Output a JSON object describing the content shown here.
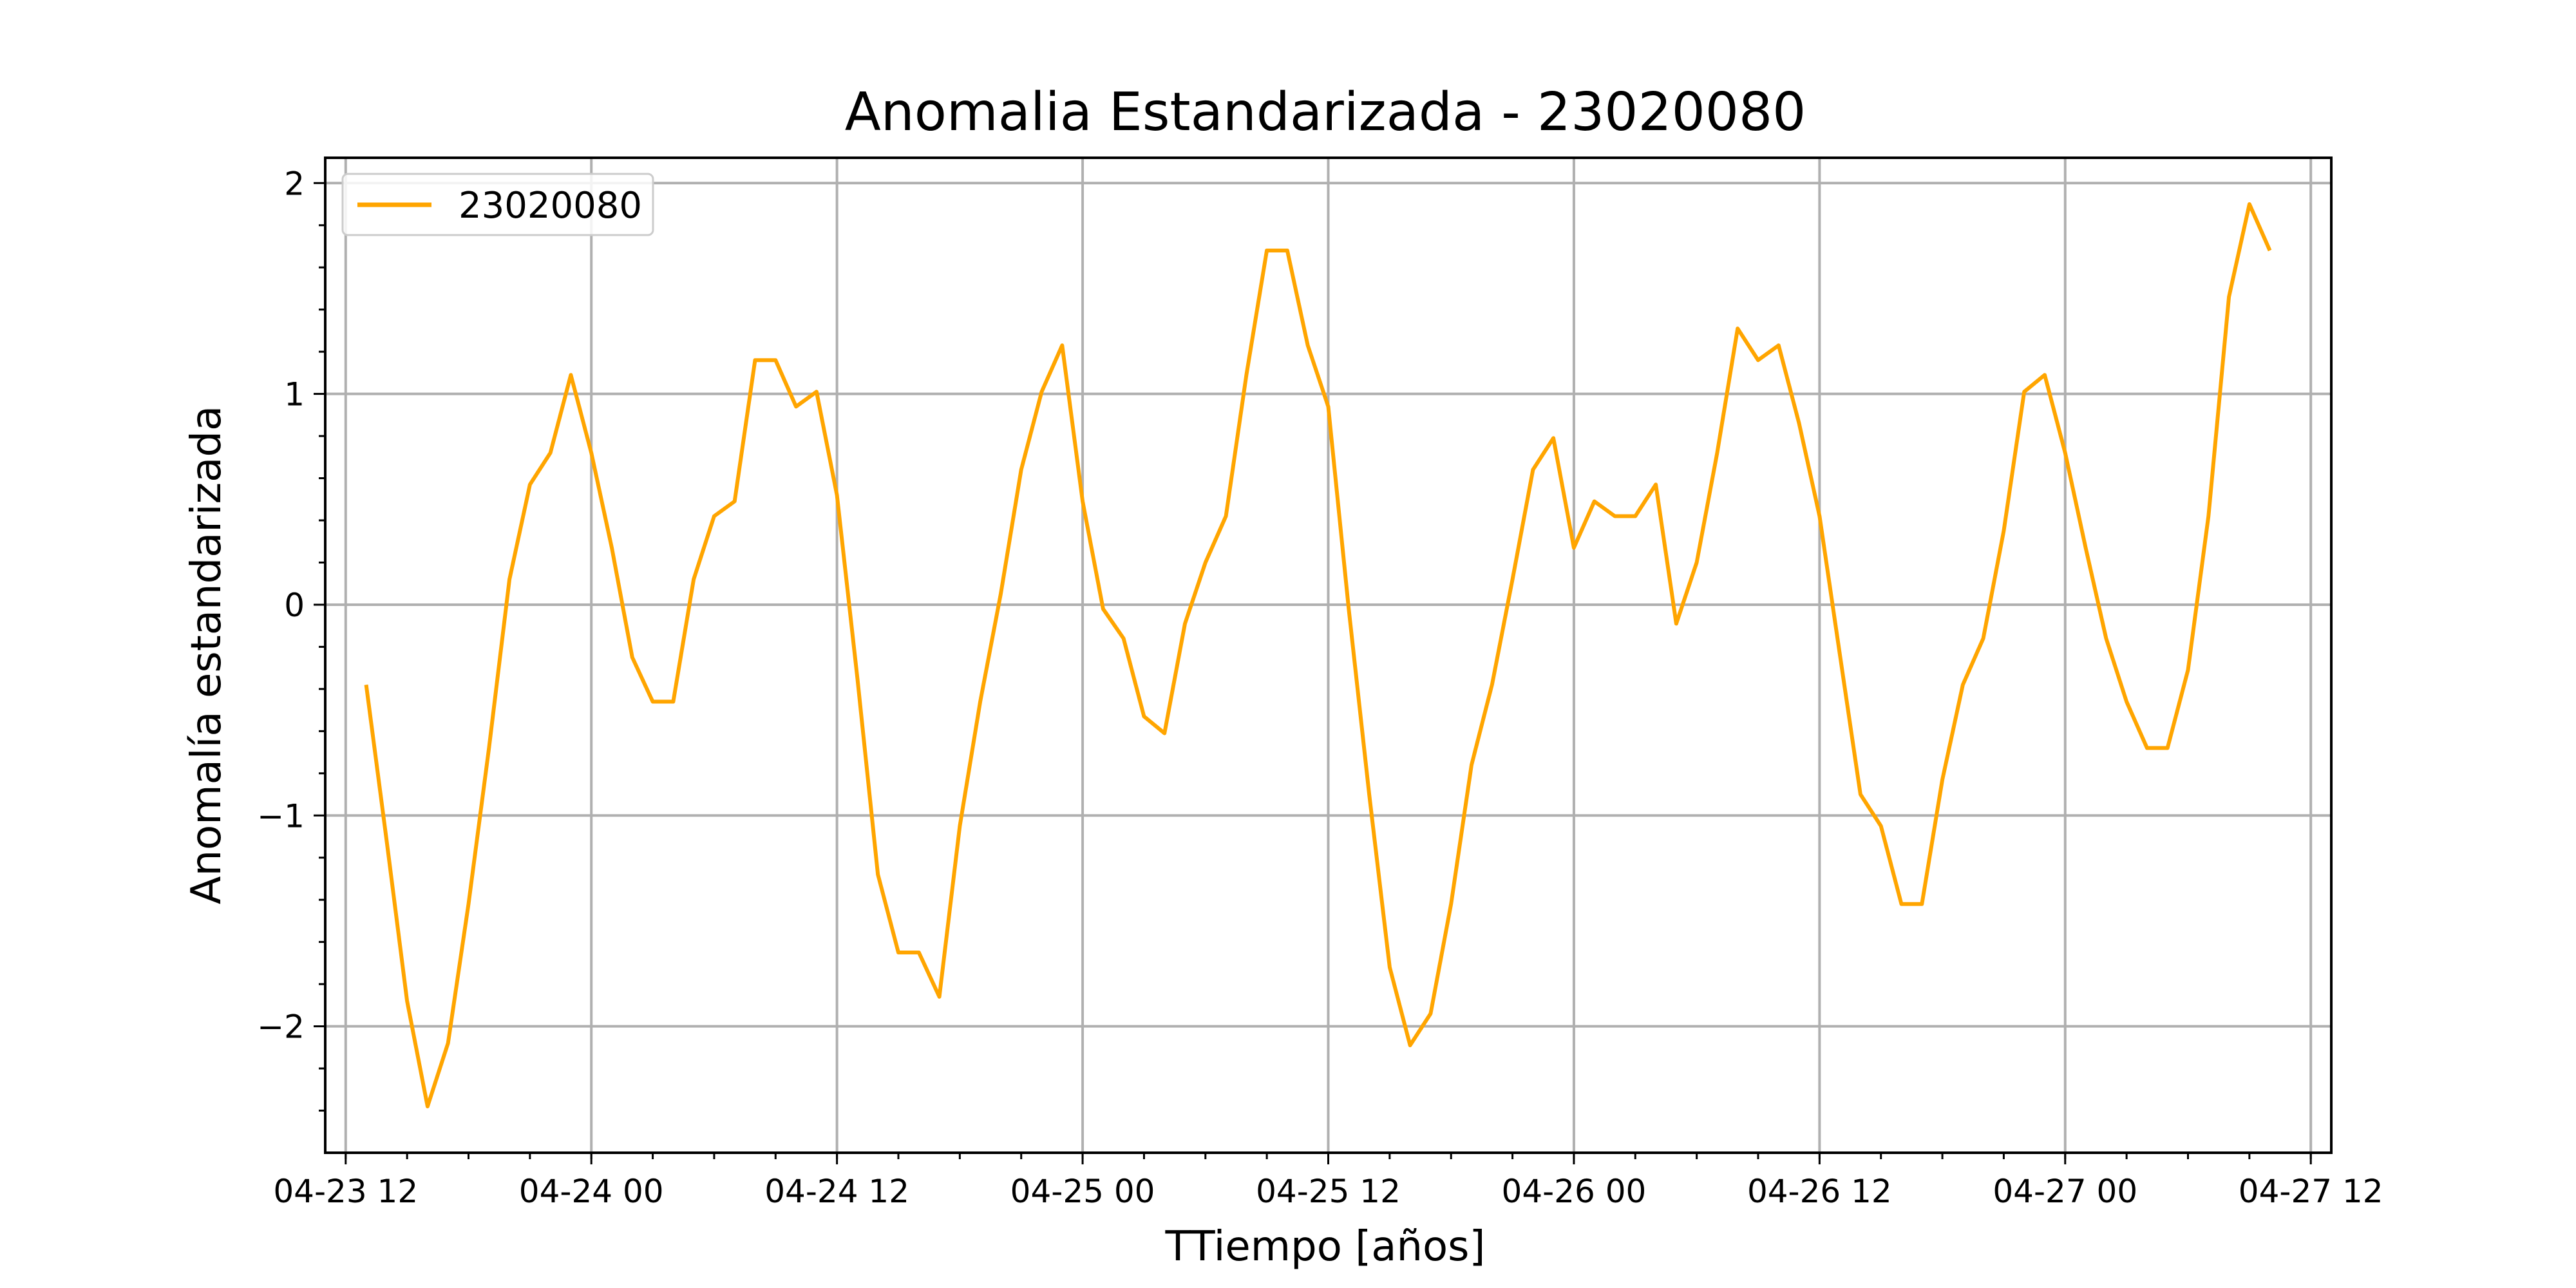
{
  "chart_data": {
    "type": "line",
    "title": "Anomalia Estandarizada - 23020080",
    "xlabel": "TTiempo [años]",
    "ylabel": "Anomalía estandarizada",
    "x_ticks": [
      {
        "x": "2024-04-23T12:00",
        "label": "04-23 12"
      },
      {
        "x": "2024-04-24T00:00",
        "label": "04-24 00"
      },
      {
        "x": "2024-04-24T12:00",
        "label": "04-24 12"
      },
      {
        "x": "2024-04-25T00:00",
        "label": "04-25 00"
      },
      {
        "x": "2024-04-25T12:00",
        "label": "04-25 12"
      },
      {
        "x": "2024-04-26T00:00",
        "label": "04-26 00"
      },
      {
        "x": "2024-04-26T12:00",
        "label": "04-26 12"
      },
      {
        "x": "2024-04-27T00:00",
        "label": "04-27 00"
      },
      {
        "x": "2024-04-27T12:00",
        "label": "04-27 12"
      }
    ],
    "y_ticks": [
      {
        "value": 2,
        "label": "2"
      },
      {
        "value": 1,
        "label": "1"
      },
      {
        "value": 0,
        "label": "0"
      },
      {
        "value": -1,
        "label": "−1"
      },
      {
        "value": -2,
        "label": "−2"
      }
    ],
    "xlim": [
      "2024-04-23T11:00",
      "2024-04-27T13:00"
    ],
    "ylim": [
      -2.6,
      2.12
    ],
    "grid": true,
    "legend_position": "upper left",
    "series": [
      {
        "name": "23020080",
        "color": "#FFA500",
        "x": [
          "2024-04-23T13:00",
          "2024-04-23T14:00",
          "2024-04-23T15:00",
          "2024-04-23T16:00",
          "2024-04-23T17:00",
          "2024-04-23T18:00",
          "2024-04-23T19:00",
          "2024-04-23T20:00",
          "2024-04-23T21:00",
          "2024-04-23T22:00",
          "2024-04-23T23:00",
          "2024-04-24T00:00",
          "2024-04-24T01:00",
          "2024-04-24T02:00",
          "2024-04-24T03:00",
          "2024-04-24T04:00",
          "2024-04-24T05:00",
          "2024-04-24T06:00",
          "2024-04-24T07:00",
          "2024-04-24T08:00",
          "2024-04-24T09:00",
          "2024-04-24T10:00",
          "2024-04-24T11:00",
          "2024-04-24T12:00",
          "2024-04-24T13:00",
          "2024-04-24T14:00",
          "2024-04-24T15:00",
          "2024-04-24T16:00",
          "2024-04-24T17:00",
          "2024-04-24T18:00",
          "2024-04-24T19:00",
          "2024-04-24T20:00",
          "2024-04-24T21:00",
          "2024-04-24T22:00",
          "2024-04-24T23:00",
          "2024-04-25T00:00",
          "2024-04-25T01:00",
          "2024-04-25T02:00",
          "2024-04-25T03:00",
          "2024-04-25T04:00",
          "2024-04-25T05:00",
          "2024-04-25T06:00",
          "2024-04-25T07:00",
          "2024-04-25T08:00",
          "2024-04-25T09:00",
          "2024-04-25T10:00",
          "2024-04-25T11:00",
          "2024-04-25T12:00",
          "2024-04-25T13:00",
          "2024-04-25T14:00",
          "2024-04-25T15:00",
          "2024-04-25T16:00",
          "2024-04-25T17:00",
          "2024-04-25T18:00",
          "2024-04-25T19:00",
          "2024-04-25T20:00",
          "2024-04-25T21:00",
          "2024-04-25T22:00",
          "2024-04-25T23:00",
          "2024-04-26T00:00",
          "2024-04-26T01:00",
          "2024-04-26T02:00",
          "2024-04-26T03:00",
          "2024-04-26T04:00",
          "2024-04-26T05:00",
          "2024-04-26T06:00",
          "2024-04-26T07:00",
          "2024-04-26T08:00",
          "2024-04-26T09:00",
          "2024-04-26T10:00",
          "2024-04-26T11:00",
          "2024-04-26T12:00",
          "2024-04-26T13:00",
          "2024-04-26T14:00",
          "2024-04-26T15:00",
          "2024-04-26T16:00",
          "2024-04-26T17:00",
          "2024-04-26T18:00",
          "2024-04-26T19:00",
          "2024-04-26T20:00",
          "2024-04-26T21:00",
          "2024-04-26T22:00",
          "2024-04-26T23:00",
          "2024-04-27T00:00",
          "2024-04-27T01:00",
          "2024-04-27T02:00",
          "2024-04-27T03:00",
          "2024-04-27T04:00",
          "2024-04-27T05:00",
          "2024-04-27T06:00",
          "2024-04-27T07:00",
          "2024-04-27T08:00",
          "2024-04-27T09:00",
          "2024-04-27T10:00"
        ],
        "values": [
          -0.38,
          -1.12,
          -1.88,
          -2.38,
          -2.08,
          -1.42,
          -0.68,
          0.12,
          0.57,
          0.72,
          1.09,
          0.72,
          0.27,
          -0.25,
          -0.46,
          -0.46,
          0.12,
          0.42,
          0.49,
          1.16,
          1.16,
          0.94,
          1.01,
          0.52,
          -0.35,
          -1.28,
          -1.65,
          -1.65,
          -1.86,
          -1.05,
          -0.46,
          0.05,
          0.64,
          1.01,
          1.23,
          0.49,
          -0.02,
          -0.16,
          -0.53,
          -0.61,
          -0.09,
          0.2,
          0.42,
          1.09,
          1.68,
          1.68,
          1.23,
          0.94,
          -0.02,
          -0.9,
          -1.72,
          -2.09,
          -1.94,
          -1.42,
          -0.76,
          -0.38,
          0.12,
          0.64,
          0.79,
          0.27,
          0.49,
          0.42,
          0.42,
          0.57,
          -0.09,
          0.2,
          0.72,
          1.31,
          1.16,
          1.23,
          0.86,
          0.42,
          -0.24,
          -0.9,
          -1.05,
          -1.42,
          -1.42,
          -0.83,
          -0.38,
          -0.16,
          0.35,
          1.01,
          1.09,
          0.72,
          0.27,
          -0.16,
          -0.46,
          -0.68,
          -0.68,
          -0.31,
          0.42,
          1.46,
          1.9,
          1.68
        ]
      }
    ]
  }
}
